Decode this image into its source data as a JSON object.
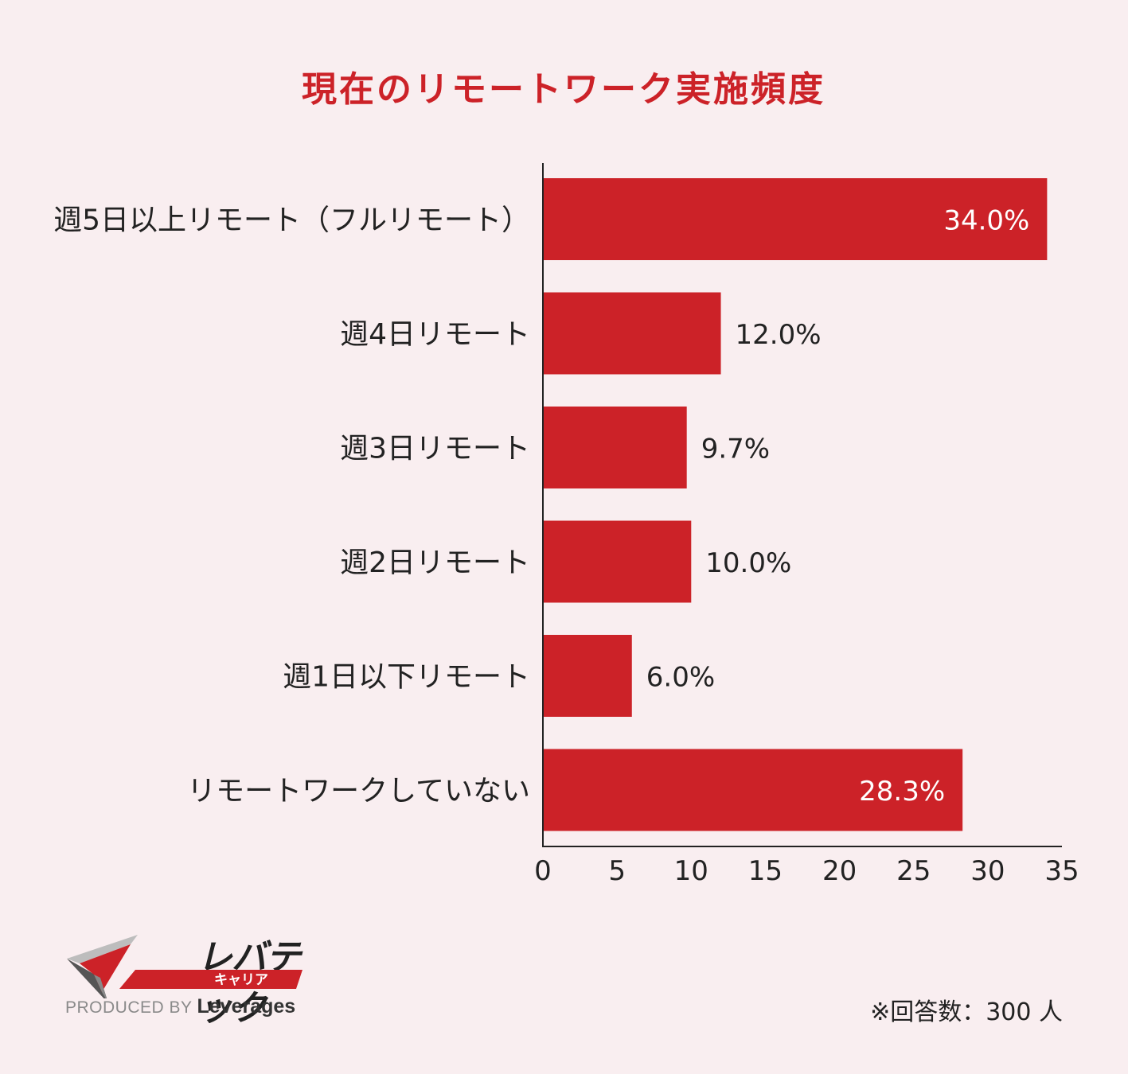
{
  "chart_data": {
    "type": "bar",
    "orientation": "horizontal",
    "title": "現在のリモートワーク実施頻度",
    "categories": [
      "週5日以上リモート（フルリモート）",
      "週4日リモート",
      "週3日リモート",
      "週2日リモート",
      "週1日以下リモート",
      "リモートワークしていない"
    ],
    "values": [
      34.0,
      12.0,
      9.7,
      10.0,
      6.0,
      28.3
    ],
    "value_labels": [
      "34.0%",
      "12.0%",
      "9.7%",
      "10.0%",
      "6.0%",
      "28.3%"
    ],
    "xlim": [
      0,
      35
    ],
    "xticks": [
      "0",
      "5",
      "10",
      "15",
      "20",
      "25",
      "30",
      "35"
    ],
    "grid": false,
    "bar_color": "#cc2228",
    "title_color": "#cc2228"
  },
  "logo": {
    "name": "レバテック",
    "sub": "キャリア",
    "produced_by": "PRODUCED BY",
    "company": "Leverages"
  },
  "note": "※回答数：300 人"
}
